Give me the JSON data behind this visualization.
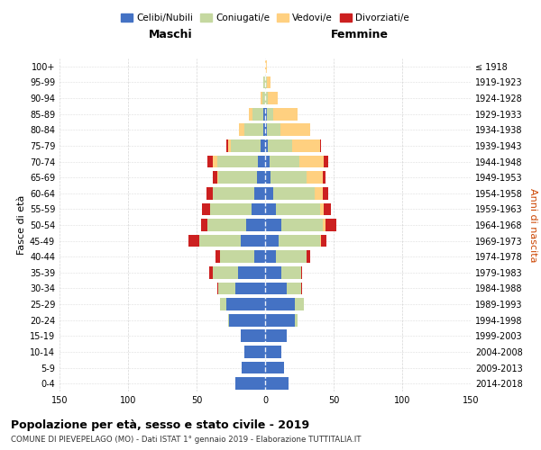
{
  "age_groups": [
    "0-4",
    "5-9",
    "10-14",
    "15-19",
    "20-24",
    "25-29",
    "30-34",
    "35-39",
    "40-44",
    "45-49",
    "50-54",
    "55-59",
    "60-64",
    "65-69",
    "70-74",
    "75-79",
    "80-84",
    "85-89",
    "90-94",
    "95-99",
    "100+"
  ],
  "birth_years": [
    "2014-2018",
    "2009-2013",
    "2004-2008",
    "1999-2003",
    "1994-1998",
    "1989-1993",
    "1984-1988",
    "1979-1983",
    "1974-1978",
    "1969-1973",
    "1964-1968",
    "1959-1963",
    "1954-1958",
    "1949-1953",
    "1944-1948",
    "1939-1943",
    "1934-1938",
    "1929-1933",
    "1924-1928",
    "1919-1923",
    "≤ 1918"
  ],
  "males": {
    "celibi": [
      22,
      17,
      15,
      18,
      26,
      28,
      22,
      20,
      8,
      18,
      14,
      10,
      8,
      6,
      5,
      3,
      1,
      1,
      0,
      0,
      0
    ],
    "coniugati": [
      0,
      0,
      0,
      0,
      1,
      5,
      12,
      18,
      25,
      30,
      28,
      30,
      30,
      28,
      30,
      22,
      14,
      8,
      2,
      1,
      0
    ],
    "vedovi": [
      0,
      0,
      0,
      0,
      0,
      0,
      0,
      0,
      0,
      0,
      0,
      0,
      0,
      1,
      3,
      2,
      4,
      3,
      1,
      0,
      0
    ],
    "divorziati": [
      0,
      0,
      0,
      0,
      0,
      0,
      1,
      3,
      3,
      8,
      5,
      6,
      5,
      3,
      4,
      1,
      0,
      0,
      0,
      0,
      0
    ]
  },
  "females": {
    "nubili": [
      17,
      14,
      12,
      16,
      22,
      22,
      16,
      12,
      8,
      10,
      12,
      8,
      6,
      4,
      3,
      2,
      1,
      1,
      0,
      0,
      0
    ],
    "coniugate": [
      0,
      0,
      0,
      0,
      2,
      6,
      10,
      14,
      22,
      30,
      30,
      32,
      30,
      26,
      22,
      18,
      10,
      5,
      2,
      1,
      0
    ],
    "vedove": [
      0,
      0,
      0,
      0,
      0,
      0,
      0,
      0,
      0,
      1,
      2,
      3,
      6,
      12,
      18,
      20,
      22,
      18,
      7,
      3,
      1
    ],
    "divorziate": [
      0,
      0,
      0,
      0,
      0,
      0,
      1,
      1,
      3,
      4,
      8,
      5,
      4,
      2,
      3,
      1,
      0,
      0,
      0,
      0,
      0
    ]
  },
  "colors": {
    "celibi": "#4472C4",
    "coniugati": "#C5D8A0",
    "vedovi": "#FFD080",
    "divorziati": "#CC2020"
  },
  "title": "Popolazione per età, sesso e stato civile - 2019",
  "subtitle": "COMUNE DI PIEVEPELAGO (MO) - Dati ISTAT 1° gennaio 2019 - Elaborazione TUTTITALIA.IT",
  "xlabel_left": "Maschi",
  "xlabel_right": "Femmine",
  "ylabel_left": "Fasce di età",
  "ylabel_right": "Anni di nascita",
  "xlim": 150,
  "legend_labels": [
    "Celibi/Nubili",
    "Coniugati/e",
    "Vedovi/e",
    "Divorziati/e"
  ],
  "background_color": "#ffffff",
  "grid_color": "#bbbbbb"
}
